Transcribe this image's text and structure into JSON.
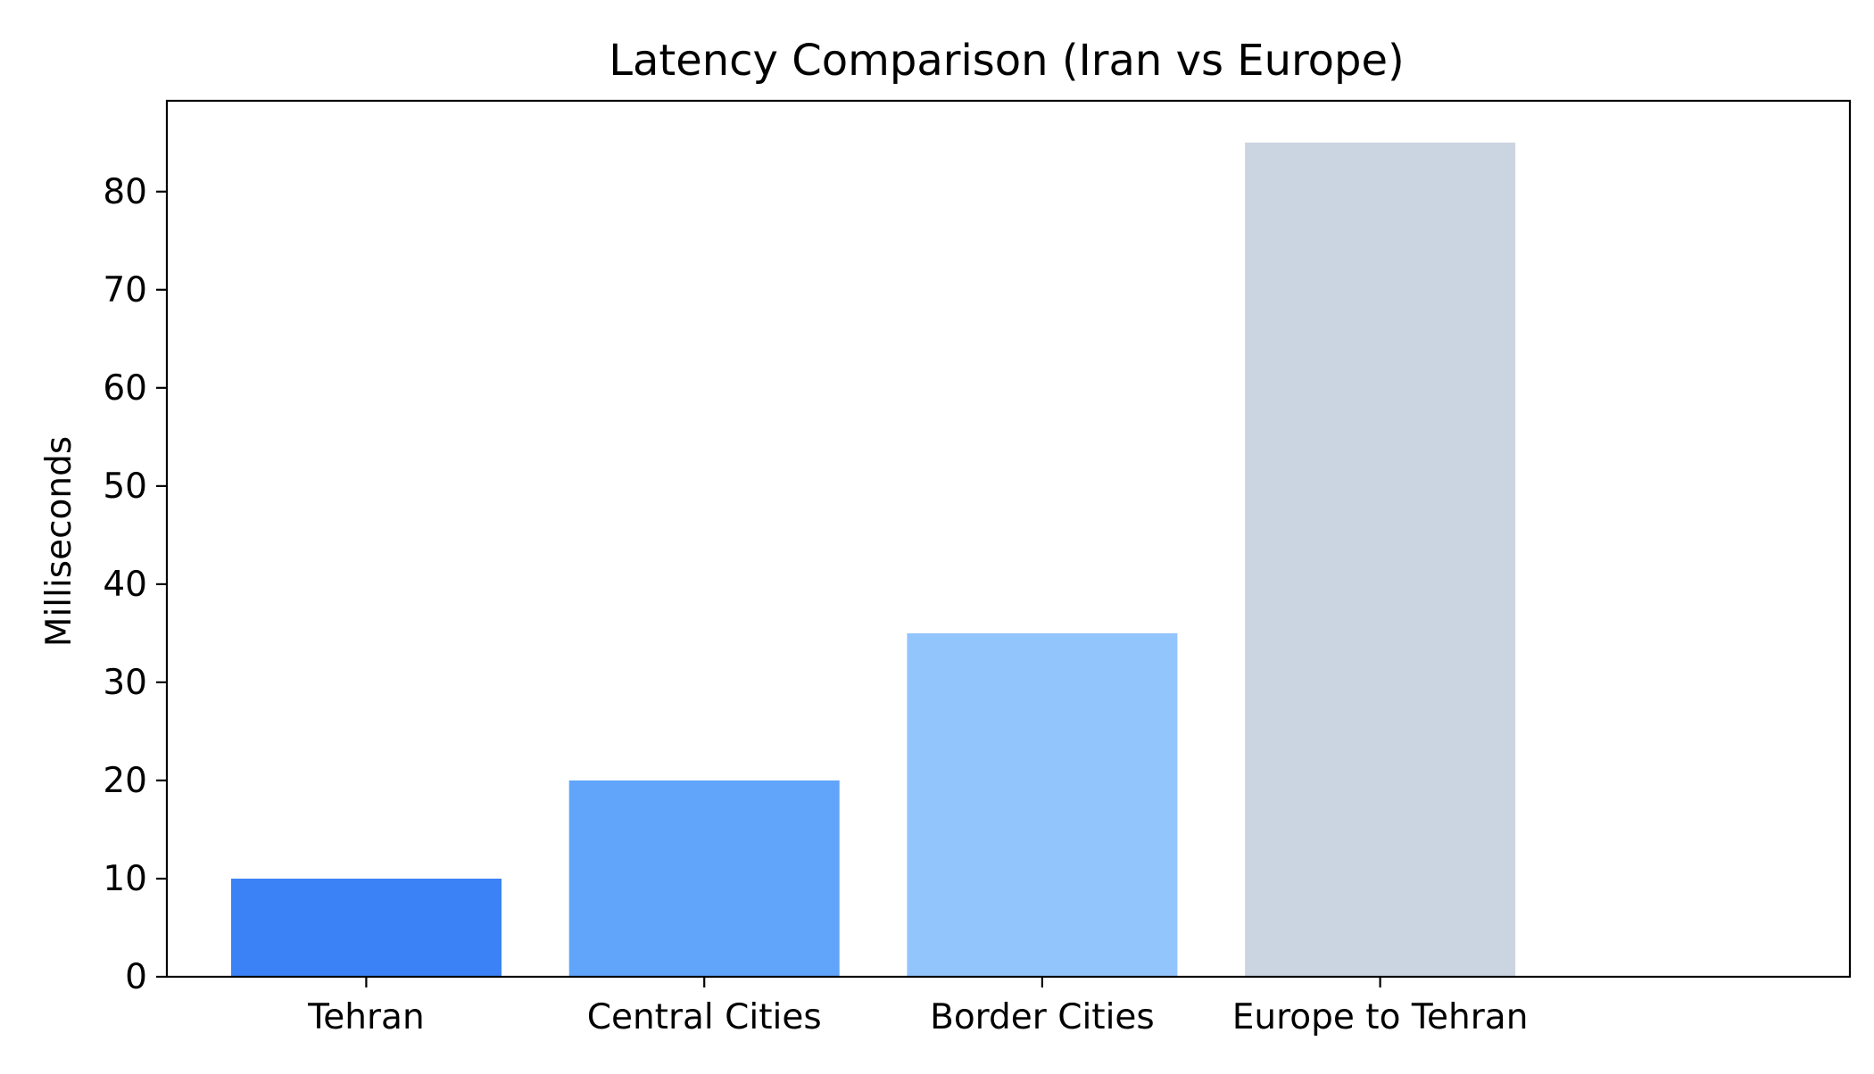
{
  "chart_data": {
    "type": "bar",
    "title": "Latency Comparison (Iran vs Europe)",
    "xlabel": "",
    "ylabel": "Milliseconds",
    "categories": [
      "Tehran",
      "Central Cities",
      "Border Cities",
      "Europe to Tehran"
    ],
    "values": [
      10,
      20,
      35,
      85
    ],
    "colors": [
      "#3b82f6",
      "#60a5fa",
      "#93c5fd",
      "#cbd5e1"
    ],
    "ylim": [
      0,
      89.25
    ],
    "yticks": [
      0,
      10,
      20,
      30,
      40,
      50,
      60,
      70,
      80
    ],
    "grid": false,
    "legend": "none"
  }
}
